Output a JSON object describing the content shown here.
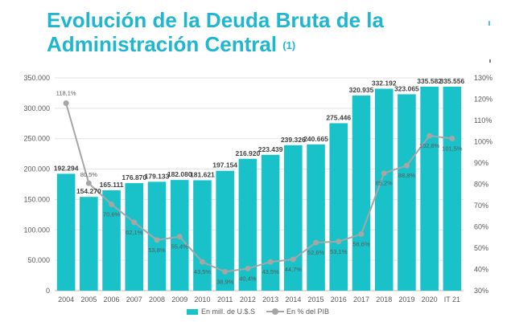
{
  "title": {
    "line1": "Evolución de la Deuda Bruta de la",
    "line2": "Administración Central",
    "footnote": "(1)"
  },
  "colors": {
    "bar": "#19c2c8",
    "line": "#a6a6a6",
    "title": "#1fb6cf"
  },
  "chart_data": {
    "type": "bar",
    "categories": [
      "2004",
      "2005",
      "2006",
      "2007",
      "2008",
      "2009",
      "2010",
      "2011",
      "2012",
      "2013",
      "2014",
      "2015",
      "2016",
      "2017",
      "2018",
      "2019",
      "2020",
      "IT 21"
    ],
    "series": [
      {
        "name": "En mill. de U.$.S",
        "kind": "bar",
        "axis": "left",
        "values": [
          192294,
          154270,
          165111,
          176870,
          179133,
          182080,
          181621,
          197154,
          216920,
          223439,
          239326,
          240665,
          275446,
          320935,
          332192,
          323065,
          335582,
          335556
        ],
        "labels": [
          "192.294",
          "154.270",
          "165.111",
          "176.870",
          "179.133",
          "182.080",
          "181.621",
          "197.154",
          "216.920",
          "223.439",
          "239.326",
          "240.665",
          "275.446",
          "320.935",
          "332.192",
          "323.065",
          "335.582",
          "335.556"
        ]
      },
      {
        "name": "En % del PIB",
        "kind": "line",
        "axis": "right",
        "values": [
          118.1,
          80.5,
          70.6,
          62.1,
          53.8,
          55.4,
          43.5,
          38.9,
          40.4,
          43.5,
          44.7,
          52.6,
          53.1,
          56.6,
          85.2,
          88.8,
          102.8,
          101.5
        ],
        "labels": [
          "118,1%",
          "80,5%",
          "70,6%",
          "62,1%",
          "53,8%",
          "55,4%",
          "43,5%",
          "38,9%",
          "40,4%",
          "43,5%",
          "44,7%",
          "52,6%",
          "53,1%",
          "56,6%",
          "85,2%",
          "88,8%",
          "102,8%",
          "101,5%"
        ]
      }
    ],
    "y_left": {
      "range": [
        0,
        350000
      ],
      "ticks": [
        0,
        50000,
        100000,
        150000,
        200000,
        250000,
        300000,
        350000
      ],
      "tick_labels": [
        "0",
        "50.000",
        "100.000",
        "150.000",
        "200.000",
        "250.000",
        "300.000",
        "350.000"
      ]
    },
    "y_right": {
      "range": [
        30,
        130
      ],
      "ticks": [
        30,
        40,
        50,
        60,
        70,
        80,
        90,
        100,
        110,
        120,
        130
      ],
      "tick_labels": [
        "30%",
        "40%",
        "50%",
        "60%",
        "70%",
        "80%",
        "90%",
        "100%",
        "110%",
        "120%",
        "130%"
      ]
    },
    "grid": true,
    "legend_position": "bottom"
  }
}
